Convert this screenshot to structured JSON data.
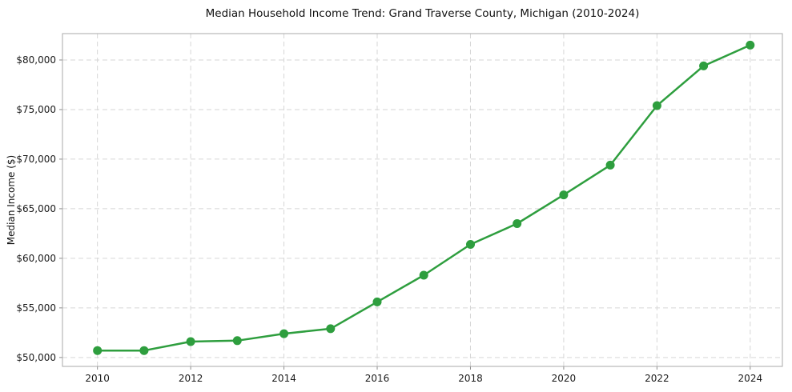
{
  "chart_data": {
    "type": "line",
    "title": "Median Household Income Trend: Grand Traverse County, Michigan (2010-2024)",
    "xlabel": "",
    "ylabel": "Median Income ($)",
    "x": [
      2010,
      2011,
      2012,
      2013,
      2014,
      2015,
      2016,
      2017,
      2018,
      2019,
      2020,
      2021,
      2022,
      2023,
      2024
    ],
    "series": [
      {
        "name": "Median Household Income",
        "values": [
          50700,
          50700,
          51600,
          51700,
          52400,
          52900,
          55600,
          58300,
          61400,
          63500,
          66400,
          69400,
          75400,
          79400,
          81500
        ]
      }
    ],
    "xticks": [
      2010,
      2012,
      2014,
      2016,
      2018,
      2020,
      2022,
      2024
    ],
    "xtick_labels": [
      "2010",
      "2012",
      "2014",
      "2016",
      "2018",
      "2020",
      "2022",
      "2024"
    ],
    "yticks": [
      50000,
      55000,
      60000,
      65000,
      70000,
      75000,
      80000
    ],
    "ytick_labels": [
      "$50,000",
      "$55,000",
      "$60,000",
      "$65,000",
      "$70,000",
      "$75,000",
      "$80,000"
    ],
    "xlim": [
      2009.25,
      2024.69
    ],
    "ylim": [
      49100,
      82660
    ],
    "grid": true,
    "legend_position": "none",
    "line_color": "#2e9e3e",
    "marker": "circle"
  }
}
